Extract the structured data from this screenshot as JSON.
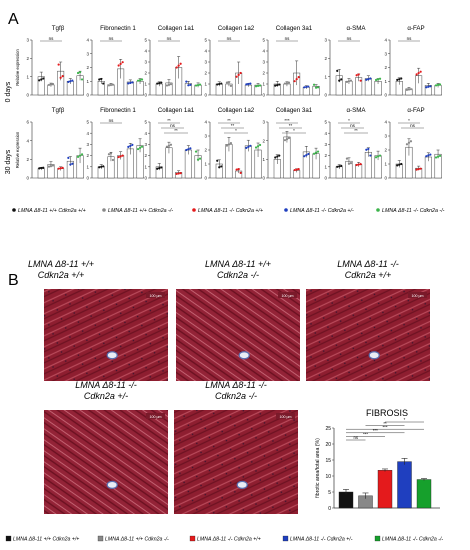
{
  "panel_a": {
    "letter": "A",
    "rows": [
      {
        "label": "0 days",
        "axis_label": "Relative expression"
      },
      {
        "label": "30 days",
        "axis_label": "Relative expression"
      }
    ],
    "genes": [
      "Tgfβ",
      "Fibronectin 1",
      "Collagen 1a1",
      "Collagen 1a2",
      "Collagen 3a1",
      "α-SMA",
      "α-FAP"
    ],
    "legend": [
      {
        "text": "LMNA Δ8-11 +/+ Cdkn2a +/+",
        "color": "#111111"
      },
      {
        "text": "LMNA Δ8-11 +/+ Cdkn2a -/-",
        "color": "#888888"
      },
      {
        "text": "LMNA Δ8-11 -/- Cdkn2a +/+",
        "color": "#e41a1c"
      },
      {
        "text": "LMNA Δ8-11 -/- Cdkn2a +/-",
        "color": "#1f3fbf"
      },
      {
        "text": "LMNA Δ8-11 -/- Cdkn2a -/-",
        "color": "#3cb44b"
      }
    ]
  },
  "panel_b": {
    "letter": "B",
    "images": [
      {
        "line1": "LMNA Δ8-11 +/+",
        "line2": "Cdkn2a +/+",
        "scale": "100 µm"
      },
      {
        "line1": "LMNA Δ8-11 +/+",
        "line2": "Cdkn2a -/-",
        "scale": "100 µm"
      },
      {
        "line1": "LMNA Δ8-11 -/-",
        "line2": "Cdkn2a +/+",
        "scale": "100 µm"
      },
      {
        "line1": "LMNA Δ8-11 -/-",
        "line2": "Cdkn2a +/-",
        "scale": "100 µm"
      },
      {
        "line1": "LMNA Δ8-11 -/-",
        "line2": "Cdkn2a -/-",
        "scale": "100 µm"
      }
    ],
    "legend": [
      {
        "text": "LMNA Δ8-11 +/+ Cdkn2a +/+",
        "color": "#111111"
      },
      {
        "text": "LMNA Δ8-11 +/+ Cdkn2a -/-",
        "color": "#888888"
      },
      {
        "text": "LMNA Δ8-11 -/- Cdkn2a +/+",
        "color": "#e41a1c"
      },
      {
        "text": "LMNA Δ8-11 -/- Cdkn2a +/-",
        "color": "#1f3fbf"
      },
      {
        "text": "LMNA Δ8-11 -/- Cdkn2a -/-",
        "color": "#16a02c"
      }
    ]
  },
  "chart_data": [
    {
      "type": "bar",
      "row": "0 days",
      "ylabel": "Relative expression",
      "panels": [
        {
          "title": "Tgfβ",
          "yticks": [
            "0",
            "1",
            "2",
            "3"
          ],
          "ylim": [
            0,
            3
          ],
          "values": [
            1.0,
            0.55,
            1.3,
            0.75,
            1.05
          ],
          "errors": [
            0.25,
            0.1,
            0.5,
            0.15,
            0.25
          ],
          "annotations": [
            "ns"
          ]
        },
        {
          "title": "Fibronectin 1",
          "yticks": [
            "0",
            "1",
            "2",
            "3",
            "4"
          ],
          "ylim": [
            0,
            4
          ],
          "values": [
            1.0,
            0.75,
            1.9,
            0.95,
            1.0
          ],
          "errors": [
            0.2,
            0.1,
            0.7,
            0.15,
            0.2
          ],
          "annotations": [
            "ns"
          ]
        },
        {
          "title": "Collagen 1a1",
          "yticks": [
            "0",
            "1",
            "2",
            "3",
            "4",
            "5"
          ],
          "ylim": [
            0,
            5
          ],
          "values": [
            1.0,
            1.1,
            2.5,
            1.05,
            0.9
          ],
          "errors": [
            0.2,
            0.3,
            1.0,
            0.2,
            0.2
          ],
          "annotations": [
            "ns"
          ]
        },
        {
          "title": "Collagen 1a2",
          "yticks": [
            "0",
            "1",
            "2",
            "3",
            "4",
            "5"
          ],
          "ylim": [
            0,
            5
          ],
          "values": [
            1.0,
            1.0,
            2.0,
            0.9,
            0.9
          ],
          "errors": [
            0.2,
            0.2,
            1.0,
            0.15,
            0.15
          ],
          "annotations": [
            "ns"
          ]
        },
        {
          "title": "Collagen 3a1",
          "yticks": [
            "0",
            "1",
            "2",
            "3",
            "4",
            "5"
          ],
          "ylim": [
            0,
            5
          ],
          "values": [
            1.0,
            1.0,
            2.0,
            0.7,
            0.8
          ],
          "errors": [
            0.25,
            0.2,
            1.1,
            0.15,
            0.15
          ],
          "annotations": [
            "ns"
          ]
        },
        {
          "title": "α-SMA",
          "yticks": [
            "0",
            "1",
            "2",
            "3"
          ],
          "ylim": [
            0,
            3
          ],
          "values": [
            1.05,
            0.75,
            0.95,
            0.9,
            0.75
          ],
          "errors": [
            0.35,
            0.15,
            0.2,
            0.15,
            0.15
          ],
          "annotations": [
            "ns"
          ]
        },
        {
          "title": "α-FAP",
          "yticks": [
            "0",
            "1",
            "2",
            "3",
            "4"
          ],
          "ylim": [
            0,
            4
          ],
          "values": [
            1.0,
            0.45,
            1.4,
            0.7,
            0.7
          ],
          "errors": [
            0.25,
            0.1,
            0.55,
            0.15,
            0.15
          ],
          "annotations": [
            "ns"
          ]
        }
      ]
    },
    {
      "type": "bar",
      "row": "30 days",
      "ylabel": "Relative expression",
      "panels": [
        {
          "title": "Tgfβ",
          "yticks": [
            "0",
            "2",
            "4",
            "6"
          ],
          "ylim": [
            0,
            6
          ],
          "values": [
            1.0,
            1.45,
            1.0,
            1.8,
            2.4
          ],
          "errors": [
            0.15,
            0.3,
            0.2,
            0.5,
            0.8
          ],
          "annotations": []
        },
        {
          "title": "Fibronectin 1",
          "yticks": [
            "0",
            "1",
            "2",
            "3",
            "4",
            "5"
          ],
          "ylim": [
            0,
            5
          ],
          "values": [
            1.0,
            1.9,
            2.0,
            2.6,
            2.9
          ],
          "errors": [
            0.2,
            0.4,
            0.35,
            0.5,
            0.6
          ],
          "annotations": [
            "ns"
          ]
        },
        {
          "title": "Collagen 1a1",
          "yticks": [
            "0",
            "1",
            "2",
            "3",
            "4",
            "5"
          ],
          "ylim": [
            0,
            5
          ],
          "values": [
            1.0,
            2.7,
            0.5,
            2.5,
            2.0
          ],
          "errors": [
            0.3,
            0.5,
            0.15,
            0.4,
            0.5
          ],
          "annotations": [
            "**",
            "ns",
            "**"
          ]
        },
        {
          "title": "Collagen 1a2",
          "yticks": [
            "0",
            "1",
            "2",
            "3",
            "4"
          ],
          "ylim": [
            0,
            4
          ],
          "values": [
            1.0,
            2.4,
            0.5,
            2.3,
            2.0
          ],
          "errors": [
            0.3,
            0.5,
            0.15,
            0.4,
            0.5
          ],
          "annotations": [
            "**",
            "**",
            "*"
          ]
        },
        {
          "title": "Collagen 3a1",
          "yticks": [
            "0",
            "1",
            "2",
            "3"
          ],
          "ylim": [
            0,
            3
          ],
          "values": [
            1.0,
            2.2,
            0.4,
            1.4,
            1.3
          ],
          "errors": [
            0.25,
            0.3,
            0.1,
            0.3,
            0.3
          ],
          "annotations": [
            "***",
            "**",
            "*"
          ]
        },
        {
          "title": "α-SMA",
          "yticks": [
            "0",
            "1",
            "2",
            "3",
            "4",
            "5"
          ],
          "ylim": [
            0,
            5
          ],
          "values": [
            1.0,
            1.5,
            1.2,
            2.3,
            2.0
          ],
          "errors": [
            0.2,
            0.3,
            0.2,
            0.4,
            0.4
          ],
          "annotations": [
            "*",
            "ns",
            "**"
          ]
        },
        {
          "title": "α-FAP",
          "yticks": [
            "0",
            "1",
            "2",
            "3",
            "4"
          ],
          "ylim": [
            0,
            4
          ],
          "values": [
            1.0,
            2.2,
            0.7,
            1.5,
            1.7
          ],
          "errors": [
            0.25,
            0.6,
            0.15,
            0.3,
            0.3
          ],
          "annotations": [
            "*",
            "ns"
          ]
        }
      ]
    },
    {
      "type": "bar",
      "title": "FIBROSIS",
      "ylabel": "fibrotic area/total area (%)",
      "yticks": [
        "0",
        "5",
        "10",
        "15",
        "20",
        "25"
      ],
      "ylim": [
        0,
        25
      ],
      "values": [
        5.0,
        3.8,
        11.8,
        14.5,
        8.9
      ],
      "errors": [
        0.8,
        0.9,
        0.4,
        1.0,
        0.3
      ],
      "annotations": [
        "ns",
        "***",
        "***",
        "***",
        "**",
        "*"
      ]
    }
  ]
}
